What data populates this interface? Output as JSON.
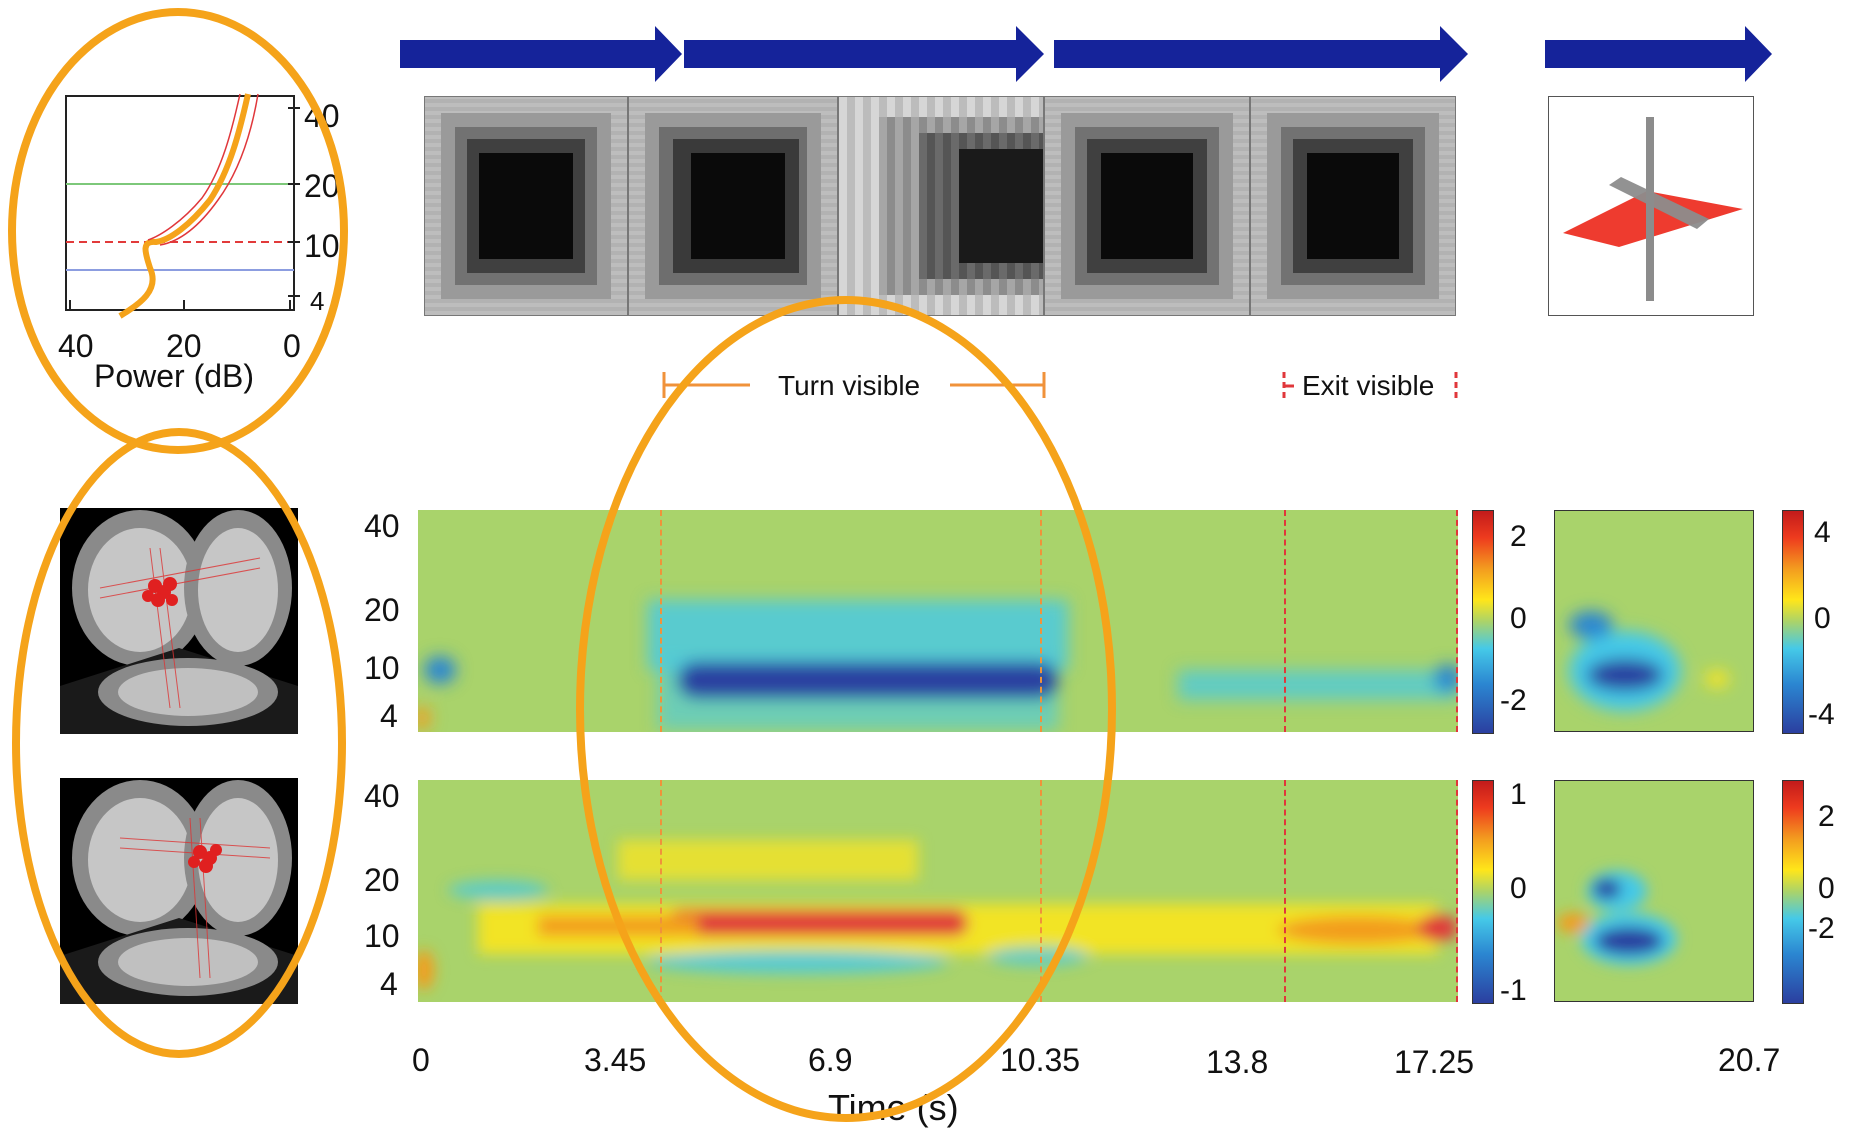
{
  "spectrum": {
    "y_ticks": [
      "40",
      "20",
      "10",
      "4"
    ],
    "x_ticks": [
      "40",
      "20",
      "0"
    ],
    "x_label": "Power (dB)"
  },
  "annotations": {
    "turn_visible": "Turn visible",
    "exit_visible": "Exit visible"
  },
  "panels": {
    "top": {
      "freq_ticks": [
        "40",
        "20",
        "10",
        "4"
      ],
      "colorbar_main": [
        "2",
        "0",
        "-2"
      ],
      "colorbar_side": [
        "4",
        "0",
        "-4"
      ]
    },
    "bottom": {
      "freq_ticks": [
        "40",
        "20",
        "10",
        "4"
      ],
      "colorbar_main": [
        "1",
        "0",
        "-1"
      ],
      "colorbar_side": [
        "2",
        "0",
        "-2"
      ]
    }
  },
  "time_axis": {
    "ticks": [
      "0",
      "3.45",
      "6.9",
      "10.35",
      "13.8",
      "17.25",
      "20.7"
    ],
    "label": "Time (s)"
  },
  "colors": {
    "arrow": "#15239a",
    "highlight": "#f5a31a",
    "background_green": "#a9d36b",
    "turn_marker": "#f0923a",
    "exit_marker": "#e0373b"
  }
}
